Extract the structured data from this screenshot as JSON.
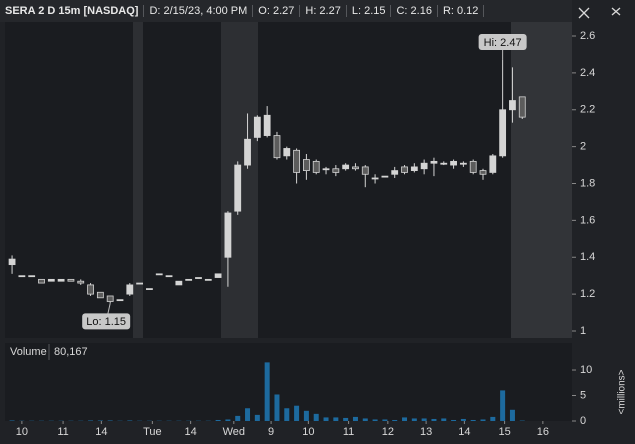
{
  "chart_data": {
    "type": "candlestick",
    "header": [
      "SERA 2 D 15m [NASDAQ]",
      "D: 2/15/23, 4:00 PM",
      "O: 2.27",
      "H: 2.27",
      "L: 2.15",
      "C: 2.16",
      "R: 0.12"
    ],
    "x": [
      0,
      1,
      2,
      3,
      4,
      5,
      6,
      7,
      8,
      9,
      10,
      11,
      12,
      13,
      14,
      15,
      16,
      17,
      18,
      19,
      20,
      21,
      22,
      23,
      24,
      25,
      26,
      27,
      28,
      29,
      30,
      31,
      32,
      33,
      34,
      35,
      36,
      37,
      38,
      39,
      40,
      41,
      42,
      43,
      44,
      45,
      46,
      47,
      48,
      49,
      50,
      51,
      52
    ],
    "open": [
      1.36,
      1.3,
      1.3,
      1.28,
      1.27,
      1.27,
      1.28,
      1.27,
      1.25,
      1.21,
      1.19,
      1.17,
      1.2,
      1.26,
      1.23,
      1.31,
      1.3,
      1.25,
      1.28,
      1.29,
      1.28,
      1.29,
      1.4,
      1.65,
      1.9,
      2.05,
      2.06,
      2.06,
      1.95,
      1.98,
      1.93,
      1.92,
      1.88,
      1.88,
      1.88,
      1.89,
      1.89,
      1.83,
      1.84,
      1.85,
      1.89,
      1.87,
      1.88,
      1.91,
      1.91,
      1.9,
      1.91,
      1.92,
      1.87,
      1.86,
      1.95,
      2.2,
      2.27
    ],
    "high": [
      1.41,
      1.3,
      1.3,
      1.28,
      1.28,
      1.28,
      1.28,
      1.28,
      1.26,
      1.21,
      1.19,
      1.17,
      1.26,
      1.26,
      1.23,
      1.31,
      1.3,
      1.27,
      1.28,
      1.29,
      1.28,
      1.31,
      1.65,
      1.92,
      2.18,
      2.17,
      2.22,
      2.08,
      2.0,
      1.99,
      1.96,
      1.93,
      1.89,
      1.9,
      1.91,
      1.91,
      1.9,
      1.85,
      1.84,
      1.89,
      1.9,
      1.91,
      1.93,
      1.94,
      1.92,
      1.93,
      1.92,
      1.93,
      1.88,
      1.96,
      2.47,
      2.43,
      2.27
    ],
    "low": [
      1.31,
      1.3,
      1.3,
      1.26,
      1.27,
      1.27,
      1.27,
      1.25,
      1.19,
      1.18,
      1.15,
      1.17,
      1.19,
      1.26,
      1.23,
      1.31,
      1.3,
      1.25,
      1.28,
      1.29,
      1.28,
      1.29,
      1.24,
      1.63,
      1.88,
      2.03,
      2.05,
      1.93,
      1.93,
      1.8,
      1.82,
      1.85,
      1.85,
      1.84,
      1.87,
      1.87,
      1.78,
      1.8,
      1.84,
      1.83,
      1.85,
      1.86,
      1.85,
      1.84,
      1.9,
      1.88,
      1.89,
      1.85,
      1.82,
      1.85,
      1.94,
      2.13,
      2.15
    ],
    "close": [
      1.39,
      1.3,
      1.3,
      1.26,
      1.28,
      1.28,
      1.27,
      1.26,
      1.2,
      1.18,
      1.16,
      1.17,
      1.25,
      1.26,
      1.23,
      1.31,
      1.3,
      1.27,
      1.28,
      1.29,
      1.28,
      1.31,
      1.64,
      1.9,
      2.04,
      2.16,
      2.17,
      1.94,
      1.99,
      1.86,
      1.87,
      1.86,
      1.88,
      1.86,
      1.9,
      1.88,
      1.85,
      1.83,
      1.84,
      1.87,
      1.86,
      1.89,
      1.91,
      1.92,
      1.91,
      1.92,
      1.91,
      1.86,
      1.85,
      1.95,
      2.2,
      2.25,
      2.16
    ],
    "up_color": "#d4d4d4",
    "down_color": "#5c5c5c",
    "xlim": [
      -0.72,
      57.07
    ],
    "xticks": [
      {
        "value": 1.0,
        "label": "10"
      },
      {
        "value": 5.2,
        "label": "11"
      },
      {
        "value": 9.1,
        "label": "14"
      },
      {
        "value": 14.3,
        "label": "Tue"
      },
      {
        "value": 18.2,
        "label": "14"
      },
      {
        "value": 22.6,
        "label": "Wed"
      },
      {
        "value": 26.4,
        "label": "9"
      },
      {
        "value": 30.2,
        "label": "10"
      },
      {
        "value": 34.3,
        "label": "11"
      },
      {
        "value": 38.3,
        "label": "12"
      },
      {
        "value": 42.2,
        "label": "13"
      },
      {
        "value": 46.1,
        "label": "14"
      },
      {
        "value": 50.2,
        "label": "15"
      },
      {
        "value": 54.1,
        "label": "16"
      }
    ],
    "ylim": [
      0.962,
      2.676
    ],
    "yticks": [
      1,
      1.2,
      1.4,
      1.6,
      1.8,
      2,
      2.2,
      2.4,
      2.6
    ],
    "annotations": [
      {
        "text": "Hi: 2.47",
        "x": 50,
        "y": 2.47
      },
      {
        "text": "Lo: 1.15",
        "x": 10,
        "y": 1.15
      }
    ],
    "volume": {
      "label": "Volume",
      "value_label": "80,167",
      "unit_label": "<millions>",
      "color": "#1d6a9e",
      "values": [
        0.1,
        0.05,
        0.05,
        0.05,
        0.05,
        0.05,
        0.05,
        0.05,
        0.1,
        0.1,
        0.1,
        0.05,
        0.1,
        0.05,
        0.05,
        0.05,
        0.05,
        0.05,
        0.05,
        0.05,
        0.05,
        0.2,
        0.3,
        1.0,
        2.5,
        1.2,
        11.5,
        5.2,
        2.5,
        3.0,
        2.0,
        1.4,
        0.7,
        0.7,
        0.6,
        0.8,
        0.5,
        0.3,
        0.3,
        0.2,
        0.7,
        0.5,
        0.5,
        0.4,
        0.5,
        0.2,
        0.4,
        0.2,
        0.3,
        0.8,
        6.0,
        2.2,
        0.080167
      ],
      "ylim": [
        0,
        15.3
      ],
      "yticks": [
        0,
        5,
        10
      ]
    }
  }
}
